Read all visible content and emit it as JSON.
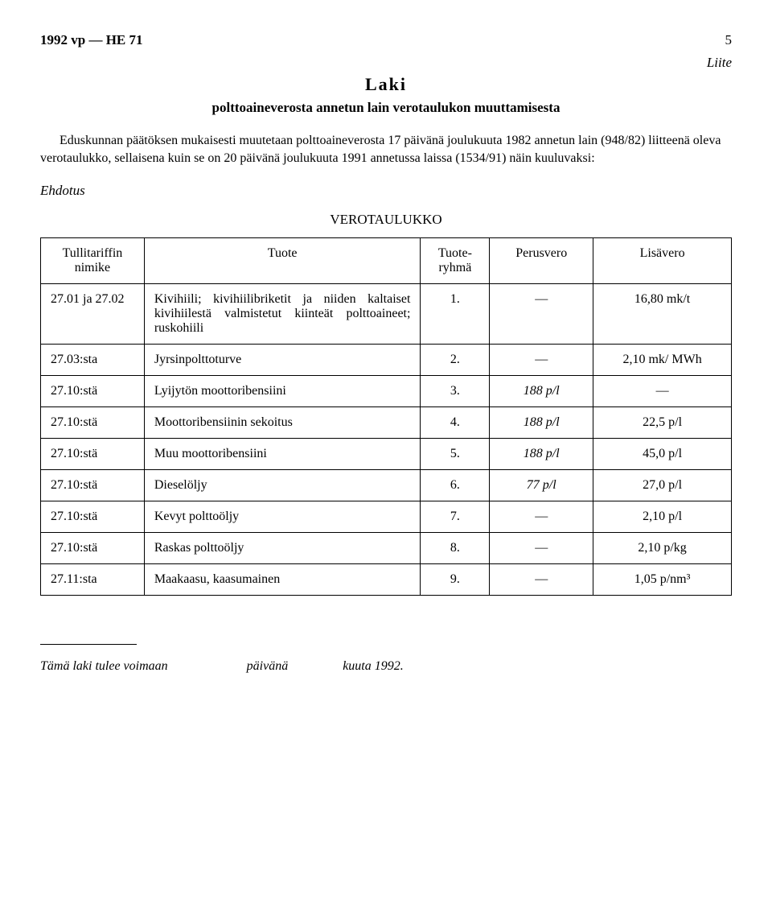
{
  "header": {
    "doc_ref": "1992 vp — HE 71",
    "page_num": "5",
    "liite": "Liite",
    "laki": "Laki",
    "subtitle": "polttoaineverosta annetun lain verotaulukon muuttamisesta",
    "intro": "Eduskunnan päätöksen mukaisesti muutetaan polttoaineverosta 17 päivänä joulukuuta 1982 annetun lain (948/82) liitteenä oleva verotaulukko, sellaisena kuin se on 20 päivänä joulukuuta 1991 annetussa laissa (1534/91) näin kuuluvaksi:",
    "ehdotus": "Ehdotus",
    "table_title": "VEROTAULUKKO"
  },
  "table": {
    "headers": {
      "nimike": "Tullitariffin nimike",
      "tuote": "Tuote",
      "ryhma": "Tuote-ryhmä",
      "perus": "Perusvero",
      "lisa": "Lisävero"
    },
    "rows": [
      {
        "nimike": "27.01 ja 27.02",
        "tuote": "Kivihiili; kivihiilibriketit ja niiden kaltaiset kivihiilestä valmistetut kiinteät polttoaineet; ruskohiili",
        "ryhma": "1.",
        "perus": "—",
        "lisa": "16,80 mk/t"
      },
      {
        "nimike": "27.03:sta",
        "tuote": "Jyrsinpolttoturve",
        "ryhma": "2.",
        "perus": "—",
        "lisa": "2,10 mk/ MWh"
      },
      {
        "nimike": "27.10:stä",
        "tuote": "Lyijytön moottoribensiini",
        "ryhma": "3.",
        "perus": "188 p/l",
        "lisa": "—"
      },
      {
        "nimike": "27.10:stä",
        "tuote": "Moottoribensiinin sekoitus",
        "ryhma": "4.",
        "perus": "188 p/l",
        "lisa": "22,5 p/l"
      },
      {
        "nimike": "27.10:stä",
        "tuote": "Muu moottoribensiini",
        "ryhma": "5.",
        "perus": "188 p/l",
        "lisa": "45,0 p/l"
      },
      {
        "nimike": "27.10:stä",
        "tuote": "Dieselöljy",
        "ryhma": "6.",
        "perus": "77 p/l",
        "lisa": "27,0 p/l"
      },
      {
        "nimike": "27.10:stä",
        "tuote": "Kevyt polttoöljy",
        "ryhma": "7.",
        "perus": "—",
        "lisa": "2,10 p/l"
      },
      {
        "nimike": "27.10:stä",
        "tuote": "Raskas polttoöljy",
        "ryhma": "8.",
        "perus": "—",
        "lisa": "2,10 p/kg"
      },
      {
        "nimike": "27.11:sta",
        "tuote": "Maakaasu, kaasumainen",
        "ryhma": "9.",
        "perus": "—",
        "lisa": "1,05 p/nm³"
      }
    ]
  },
  "footer": {
    "part1": "Tämä laki tulee voimaan",
    "part2": "päivänä",
    "part3": "kuuta 1992."
  },
  "style": {
    "background_color": "#ffffff",
    "text_color": "#000000",
    "font_family": "Times New Roman",
    "title_fontsize_pt": 16,
    "body_fontsize_pt": 12
  }
}
